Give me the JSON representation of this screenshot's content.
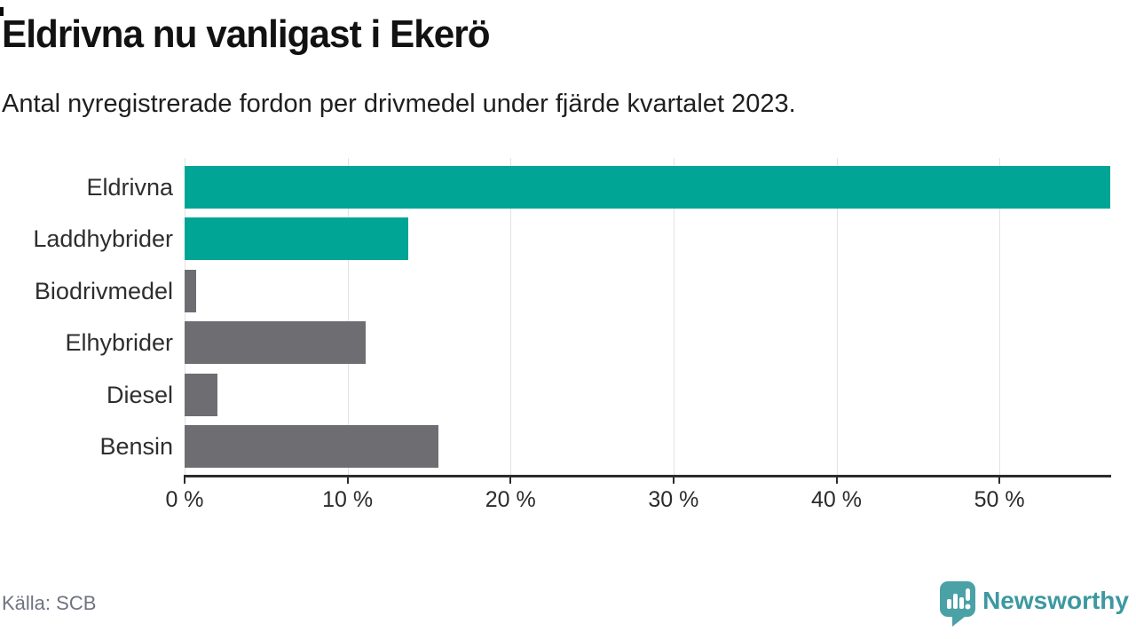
{
  "header": {
    "title": "Eldrivna nu vanligast i Ekerö",
    "subtitle": "Antal nyregistrerade fordon per drivmedel under fjärde kvartalet 2023."
  },
  "chart_data": {
    "type": "bar",
    "orientation": "horizontal",
    "title": "Eldrivna nu vanligast i Ekerö",
    "subtitle": "Antal nyregistrerade fordon per drivmedel under fjärde kvartalet 2023.",
    "categories": [
      "Eldrivna",
      "Laddhybrider",
      "Biodrivmedel",
      "Elhybrider",
      "Diesel",
      "Bensin"
    ],
    "values": [
      56.8,
      13.7,
      0.7,
      11.1,
      2.0,
      15.6
    ],
    "unit": "%",
    "bar_colors": [
      "#00a596",
      "#00a596",
      "#6d6d72",
      "#6d6d72",
      "#6d6d72",
      "#6d6d72"
    ],
    "xlim": [
      0,
      56.8
    ],
    "x_ticks": [
      0,
      10,
      20,
      30,
      40,
      50
    ],
    "x_tick_suffix": " %",
    "xlabel": "",
    "ylabel": "",
    "grid": "vertical-only",
    "legend": "none"
  },
  "footer": {
    "source": "Källa: SCB",
    "brand": "Newsworthy"
  },
  "colors": {
    "accent_teal": "#00a596",
    "neutral_gray": "#6d6d72",
    "brand_teal": "#3d98a0",
    "grid": "#e2e2e2",
    "axis": "#2c2c2c"
  }
}
